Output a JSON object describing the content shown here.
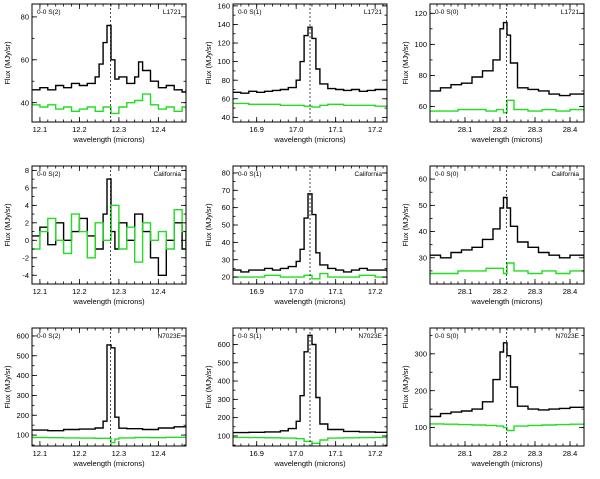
{
  "chart_data": [
    {
      "type": "line",
      "line": "0-0 S(2)",
      "source": "L1721",
      "xlabel": "wavelength (microns)",
      "ylabel": "Flux (MJy/sr)",
      "xlim": [
        12.08,
        12.47
      ],
      "ylim": [
        31,
        86
      ],
      "xticks": [
        12.1,
        12.2,
        12.3,
        12.4
      ],
      "xticklabels": [
        "12.1",
        "12.2",
        "12.3",
        "12.4"
      ],
      "yticks": [
        40,
        60,
        80
      ],
      "yticklabels": [
        "40",
        "60",
        "80"
      ],
      "line_center": 12.279,
      "series": [
        {
          "name": "black",
          "color": "#000000",
          "x": [
            12.08,
            12.1,
            12.12,
            12.14,
            12.16,
            12.18,
            12.2,
            12.22,
            12.24,
            12.25,
            12.26,
            12.27,
            12.28,
            12.29,
            12.3,
            12.32,
            12.34,
            12.35,
            12.36,
            12.38,
            12.4,
            12.42,
            12.44,
            12.46,
            12.47
          ],
          "y": [
            46,
            47,
            46,
            48,
            47,
            49,
            48,
            49,
            52,
            58,
            68,
            76,
            60,
            51,
            52,
            49,
            52,
            59,
            55,
            50,
            47,
            48,
            46,
            45,
            46
          ]
        },
        {
          "name": "green",
          "color": "#22dd22",
          "x": [
            12.08,
            12.1,
            12.12,
            12.14,
            12.16,
            12.18,
            12.2,
            12.22,
            12.24,
            12.26,
            12.28,
            12.3,
            12.32,
            12.34,
            12.36,
            12.38,
            12.4,
            12.42,
            12.44,
            12.46,
            12.47
          ],
          "y": [
            39,
            38,
            39,
            37,
            38,
            36,
            37,
            38,
            36,
            38,
            35,
            38,
            40,
            41,
            44,
            39,
            37,
            38,
            36,
            38,
            37
          ]
        }
      ]
    },
    {
      "type": "line",
      "line": "0-0 S(1)",
      "source": "L1721",
      "xlabel": "wavelength (microns)",
      "ylabel": "Flux (MJy/sr)",
      "xlim": [
        16.84,
        17.23
      ],
      "ylim": [
        35,
        162
      ],
      "xticks": [
        16.9,
        17.0,
        17.1,
        17.2
      ],
      "xticklabels": [
        "16.9",
        "17.0",
        "17.1",
        "17.2"
      ],
      "yticks": [
        40,
        60,
        80,
        100,
        120,
        140,
        160
      ],
      "yticklabels": [
        "40",
        "60",
        "80",
        "100",
        "120",
        "140",
        "160"
      ],
      "line_center": 17.035,
      "series": [
        {
          "name": "black",
          "color": "#000000",
          "x": [
            16.84,
            16.86,
            16.88,
            16.9,
            16.92,
            16.94,
            16.96,
            16.98,
            17.0,
            17.01,
            17.02,
            17.03,
            17.04,
            17.05,
            17.06,
            17.08,
            17.1,
            17.12,
            17.14,
            17.16,
            17.18,
            17.2,
            17.23
          ],
          "y": [
            67,
            66,
            68,
            67,
            68,
            69,
            70,
            72,
            80,
            100,
            128,
            137,
            125,
            92,
            76,
            71,
            70,
            69,
            70,
            68,
            69,
            70,
            69
          ]
        },
        {
          "name": "green",
          "color": "#22dd22",
          "x": [
            16.84,
            16.88,
            16.92,
            16.96,
            17.0,
            17.02,
            17.04,
            17.06,
            17.08,
            17.12,
            17.16,
            17.2,
            17.23
          ],
          "y": [
            55,
            54,
            54,
            53,
            53,
            52,
            51,
            53,
            54,
            53,
            53,
            52,
            53
          ]
        }
      ]
    },
    {
      "type": "line",
      "line": "0-0 S(0)",
      "source": "L1721",
      "xlabel": "wavelength (microns)",
      "ylabel": "Flux (MJy/sr)",
      "xlim": [
        28.0,
        28.44
      ],
      "ylim": [
        50,
        126
      ],
      "xticks": [
        28.1,
        28.2,
        28.3,
        28.4
      ],
      "xticklabels": [
        "28.1",
        "28.2",
        "28.3",
        "28.4"
      ],
      "yticks": [
        60,
        80,
        100,
        120
      ],
      "yticklabels": [
        "60",
        "80",
        "100",
        "120"
      ],
      "line_center": 28.219,
      "series": [
        {
          "name": "black",
          "color": "#000000",
          "x": [
            28.0,
            28.03,
            28.06,
            28.09,
            28.12,
            28.15,
            28.18,
            28.2,
            28.21,
            28.22,
            28.23,
            28.25,
            28.28,
            28.31,
            28.34,
            28.37,
            28.4,
            28.44
          ],
          "y": [
            70,
            72,
            74,
            75,
            79,
            83,
            90,
            110,
            114,
            106,
            88,
            72,
            71,
            70,
            68,
            67,
            68,
            69
          ]
        },
        {
          "name": "green",
          "color": "#22dd22",
          "x": [
            28.0,
            28.04,
            28.08,
            28.12,
            28.16,
            28.19,
            28.21,
            28.22,
            28.24,
            28.28,
            28.32,
            28.36,
            28.4,
            28.44
          ],
          "y": [
            57,
            57,
            58,
            58,
            57,
            58,
            56,
            64,
            58,
            57,
            58,
            57,
            58,
            57
          ]
        }
      ]
    },
    {
      "type": "line",
      "line": "0-0 S(2)",
      "source": "California",
      "xlabel": "wavelength (microns)",
      "ylabel": "Flux (MJy/sr)",
      "xlim": [
        12.08,
        12.47
      ],
      "ylim": [
        -5,
        8.5
      ],
      "xticks": [
        12.1,
        12.2,
        12.3,
        12.4
      ],
      "xticklabels": [
        "12.1",
        "12.2",
        "12.3",
        "12.4"
      ],
      "yticks": [
        -4,
        -2,
        0,
        2,
        4,
        6,
        8
      ],
      "yticklabels": [
        "-4",
        "-2",
        "0",
        "2",
        "4",
        "6",
        "8"
      ],
      "line_center": 12.279,
      "series": [
        {
          "name": "black",
          "color": "#000000",
          "x": [
            12.08,
            12.1,
            12.12,
            12.14,
            12.16,
            12.18,
            12.2,
            12.22,
            12.24,
            12.26,
            12.27,
            12.28,
            12.29,
            12.3,
            12.32,
            12.34,
            12.36,
            12.38,
            12.4,
            12.42,
            12.44,
            12.46,
            12.47
          ],
          "y": [
            0.5,
            1.5,
            -0.5,
            2,
            0,
            1,
            2.5,
            0.5,
            -1,
            3,
            7,
            1,
            -1,
            2,
            0,
            3,
            1,
            -2,
            -4,
            0,
            2,
            -1,
            1
          ]
        },
        {
          "name": "green",
          "color": "#22dd22",
          "x": [
            12.08,
            12.1,
            12.12,
            12.14,
            12.16,
            12.18,
            12.2,
            12.22,
            12.24,
            12.26,
            12.28,
            12.3,
            12.32,
            12.34,
            12.36,
            12.38,
            12.4,
            12.42,
            12.44,
            12.46,
            12.47
          ],
          "y": [
            -1,
            1,
            2.5,
            0,
            -1.5,
            3,
            1,
            -2,
            2,
            0,
            4,
            -1,
            1.5,
            -2.5,
            2,
            0,
            1,
            -1,
            3.5,
            1,
            -2
          ]
        }
      ]
    },
    {
      "type": "line",
      "line": "0-0 S(1)",
      "source": "California",
      "xlabel": "wavelength (microns)",
      "ylabel": "Flux (MJy/sr)",
      "xlim": [
        16.84,
        17.23
      ],
      "ylim": [
        16,
        84
      ],
      "xticks": [
        16.9,
        17.0,
        17.1,
        17.2
      ],
      "xticklabels": [
        "16.9",
        "17.0",
        "17.1",
        "17.2"
      ],
      "yticks": [
        20,
        30,
        40,
        50,
        60,
        70,
        80
      ],
      "yticklabels": [
        "20",
        "30",
        "40",
        "50",
        "60",
        "70",
        "80"
      ],
      "line_center": 17.035,
      "series": [
        {
          "name": "black",
          "color": "#000000",
          "x": [
            16.84,
            16.86,
            16.88,
            16.9,
            16.92,
            16.94,
            16.96,
            16.98,
            17.0,
            17.01,
            17.02,
            17.03,
            17.04,
            17.05,
            17.06,
            17.08,
            17.1,
            17.12,
            17.14,
            17.16,
            17.18,
            17.2,
            17.23
          ],
          "y": [
            24,
            23,
            24,
            24,
            25,
            24,
            25,
            26,
            29,
            36,
            54,
            68,
            56,
            34,
            27,
            25,
            24,
            23,
            24,
            25,
            24,
            24,
            23
          ]
        },
        {
          "name": "green",
          "color": "#22dd22",
          "x": [
            16.84,
            16.88,
            16.92,
            16.96,
            17.0,
            17.02,
            17.04,
            17.06,
            17.08,
            17.12,
            17.16,
            17.2,
            17.23
          ],
          "y": [
            20,
            20,
            21,
            20,
            20,
            21,
            19,
            22,
            20,
            20,
            21,
            20,
            20
          ]
        }
      ]
    },
    {
      "type": "line",
      "line": "0-0 S(0)",
      "source": "California",
      "xlabel": "wavelength (microns)",
      "ylabel": "Flux (MJy/sr)",
      "xlim": [
        28.0,
        28.44
      ],
      "ylim": [
        20,
        65
      ],
      "xticks": [
        28.1,
        28.2,
        28.3,
        28.4
      ],
      "xticklabels": [
        "28.1",
        "28.2",
        "28.3",
        "28.4"
      ],
      "yticks": [
        30,
        40,
        50,
        60
      ],
      "yticklabels": [
        "30",
        "40",
        "50",
        "60"
      ],
      "line_center": 28.219,
      "series": [
        {
          "name": "black",
          "color": "#000000",
          "x": [
            28.0,
            28.03,
            28.06,
            28.09,
            28.12,
            28.15,
            28.18,
            28.2,
            28.21,
            28.22,
            28.23,
            28.25,
            28.28,
            28.31,
            28.34,
            28.37,
            28.4,
            28.44
          ],
          "y": [
            31,
            30,
            32,
            33,
            34,
            37,
            41,
            49,
            53,
            49,
            42,
            36,
            34,
            32,
            31,
            30,
            31,
            30
          ]
        },
        {
          "name": "green",
          "color": "#22dd22",
          "x": [
            28.0,
            28.04,
            28.08,
            28.12,
            28.16,
            28.19,
            28.21,
            28.22,
            28.24,
            28.28,
            28.32,
            28.36,
            28.4,
            28.44
          ],
          "y": [
            24,
            24,
            25,
            25,
            26,
            26,
            24,
            28,
            25,
            24,
            25,
            24,
            25,
            24
          ]
        }
      ]
    },
    {
      "type": "line",
      "line": "0-0 S(2)",
      "source": "N7023E",
      "xlabel": "wavelength (microns)",
      "ylabel": "Flux (MJy/sr)",
      "xlim": [
        12.08,
        12.47
      ],
      "ylim": [
        45,
        640
      ],
      "xticks": [
        12.1,
        12.2,
        12.3,
        12.4
      ],
      "xticklabels": [
        "12.1",
        "12.2",
        "12.3",
        "12.4"
      ],
      "yticks": [
        100,
        200,
        300,
        400,
        500,
        600
      ],
      "yticklabels": [
        "100",
        "200",
        "300",
        "400",
        "500",
        "600"
      ],
      "line_center": 12.279,
      "series": [
        {
          "name": "black",
          "color": "#000000",
          "x": [
            12.08,
            12.12,
            12.16,
            12.2,
            12.24,
            12.26,
            12.27,
            12.28,
            12.29,
            12.3,
            12.32,
            12.36,
            12.4,
            12.44,
            12.47
          ],
          "y": [
            125,
            122,
            128,
            130,
            136,
            170,
            555,
            540,
            190,
            135,
            132,
            128,
            136,
            142,
            150
          ]
        },
        {
          "name": "green",
          "color": "#22dd22",
          "x": [
            12.08,
            12.12,
            12.16,
            12.2,
            12.24,
            12.26,
            12.28,
            12.29,
            12.3,
            12.34,
            12.38,
            12.42,
            12.47
          ],
          "y": [
            88,
            87,
            86,
            85,
            84,
            84,
            62,
            80,
            86,
            88,
            87,
            89,
            88
          ]
        }
      ]
    },
    {
      "type": "line",
      "line": "0-0 S(1)",
      "source": "N7023E",
      "xlabel": "wavelength (microns)",
      "ylabel": "Flux (MJy/sr)",
      "xlim": [
        16.84,
        17.23
      ],
      "ylim": [
        45,
        690
      ],
      "xticks": [
        16.9,
        17.0,
        17.1,
        17.2
      ],
      "xticklabels": [
        "16.9",
        "17.0",
        "17.1",
        "17.2"
      ],
      "yticks": [
        100,
        200,
        300,
        400,
        500,
        600
      ],
      "yticklabels": [
        "100",
        "200",
        "300",
        "400",
        "500",
        "600"
      ],
      "line_center": 17.035,
      "series": [
        {
          "name": "black",
          "color": "#000000",
          "x": [
            16.84,
            16.88,
            16.92,
            16.96,
            16.98,
            17.0,
            17.01,
            17.02,
            17.03,
            17.04,
            17.05,
            17.06,
            17.08,
            17.12,
            17.16,
            17.2,
            17.23
          ],
          "y": [
            118,
            120,
            122,
            128,
            140,
            180,
            320,
            560,
            650,
            600,
            310,
            165,
            135,
            125,
            122,
            120,
            118
          ]
        },
        {
          "name": "green",
          "color": "#22dd22",
          "x": [
            16.84,
            16.88,
            16.92,
            16.96,
            17.0,
            17.02,
            17.04,
            17.06,
            17.08,
            17.12,
            17.16,
            17.2,
            17.23
          ],
          "y": [
            92,
            91,
            90,
            88,
            85,
            70,
            60,
            78,
            88,
            90,
            91,
            92,
            92
          ]
        }
      ]
    },
    {
      "type": "line",
      "line": "0-0 S(0)",
      "source": "N7023E",
      "xlabel": "wavelength (microns)",
      "ylabel": "Flux (MJy/sr)",
      "xlim": [
        28.0,
        28.44
      ],
      "ylim": [
        50,
        370
      ],
      "xticks": [
        28.1,
        28.2,
        28.3,
        28.4
      ],
      "xticklabels": [
        "28.1",
        "28.2",
        "28.3",
        "28.4"
      ],
      "yticks": [
        100,
        200,
        300
      ],
      "yticklabels": [
        "100",
        "200",
        "300"
      ],
      "line_center": 28.219,
      "series": [
        {
          "name": "black",
          "color": "#000000",
          "x": [
            28.0,
            28.03,
            28.06,
            28.09,
            28.12,
            28.15,
            28.18,
            28.2,
            28.21,
            28.22,
            28.23,
            28.25,
            28.28,
            28.31,
            28.34,
            28.37,
            28.4,
            28.44
          ],
          "y": [
            130,
            138,
            142,
            145,
            150,
            170,
            230,
            305,
            330,
            295,
            210,
            158,
            150,
            148,
            150,
            152,
            155,
            158
          ]
        },
        {
          "name": "green",
          "color": "#22dd22",
          "x": [
            28.0,
            28.04,
            28.08,
            28.12,
            28.16,
            28.19,
            28.21,
            28.22,
            28.24,
            28.28,
            28.32,
            28.36,
            28.4,
            28.44
          ],
          "y": [
            110,
            109,
            108,
            107,
            106,
            104,
            100,
            92,
            104,
            106,
            107,
            108,
            109,
            110
          ]
        }
      ]
    }
  ]
}
